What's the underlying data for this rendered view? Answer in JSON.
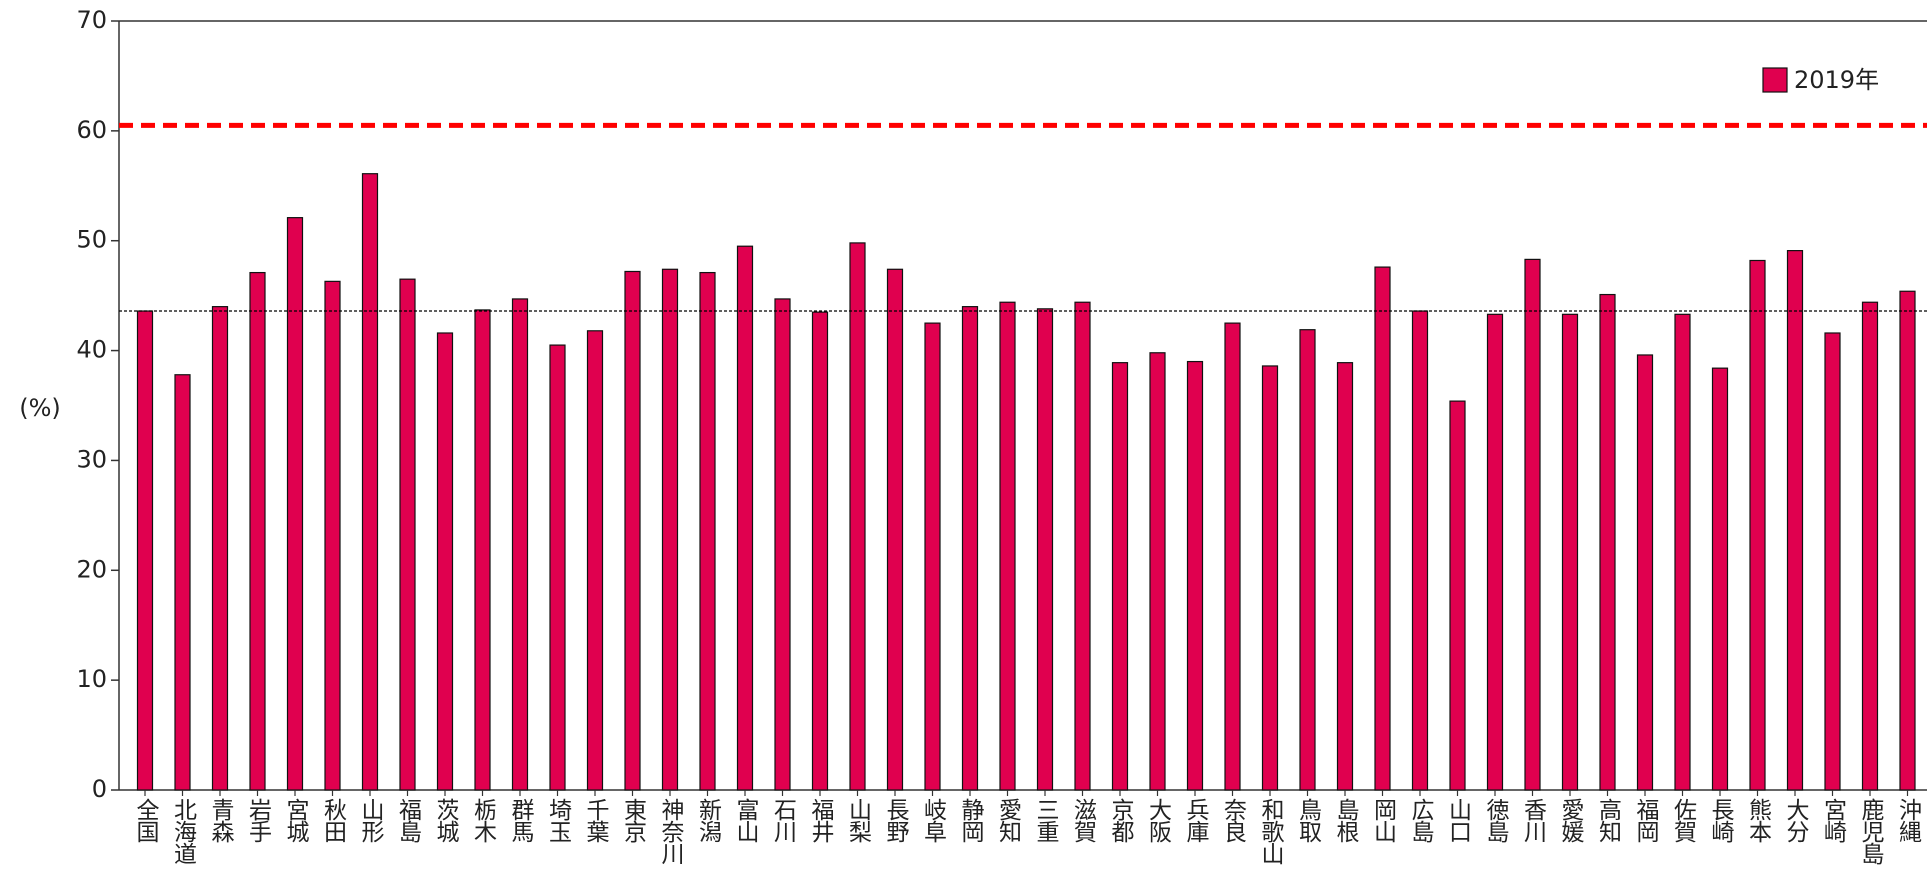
{
  "chart_data": {
    "type": "bar",
    "y_label": "(%)",
    "categories": [
      "全国",
      "北海道",
      "青森",
      "岩手",
      "宮城",
      "秋田",
      "山形",
      "福島",
      "茨城",
      "栃木",
      "群馬",
      "埼玉",
      "千葉",
      "東京",
      "神奈川",
      "新潟",
      "富山",
      "石川",
      "福井",
      "山梨",
      "長野",
      "岐阜",
      "静岡",
      "愛知",
      "三重",
      "滋賀",
      "京都",
      "大阪",
      "兵庫",
      "奈良",
      "和歌山",
      "鳥取",
      "島根",
      "岡山",
      "広島",
      "山口",
      "徳島",
      "香川",
      "愛媛",
      "高知",
      "福岡",
      "佐賀",
      "長崎",
      "熊本",
      "大分",
      "宮崎",
      "鹿児島",
      "沖縄"
    ],
    "series": [
      {
        "name": "2019年",
        "color": "#e0004f",
        "values": [
          43.6,
          37.8,
          44.0,
          47.1,
          52.1,
          46.3,
          56.1,
          46.5,
          41.6,
          43.7,
          44.7,
          40.5,
          41.8,
          47.2,
          47.4,
          47.1,
          49.5,
          44.7,
          43.5,
          49.8,
          47.4,
          42.5,
          44.0,
          44.4,
          43.8,
          44.4,
          38.9,
          39.8,
          39.0,
          42.5,
          38.6,
          41.9,
          38.9,
          47.6,
          43.6,
          35.4,
          43.3,
          48.3,
          43.3,
          45.1,
          39.6,
          43.3,
          38.4,
          48.2,
          49.1,
          41.6,
          44.4,
          45.4
        ]
      }
    ],
    "reference_lines": [
      {
        "value": 60.5,
        "color": "#ff0000",
        "style": "dashed"
      },
      {
        "value": 43.6,
        "color": "#000000",
        "style": "dotted"
      }
    ],
    "ylim": [
      0,
      70
    ],
    "yticks": [
      0,
      10,
      20,
      30,
      40,
      50,
      60,
      70
    ],
    "legend": "upper right"
  }
}
